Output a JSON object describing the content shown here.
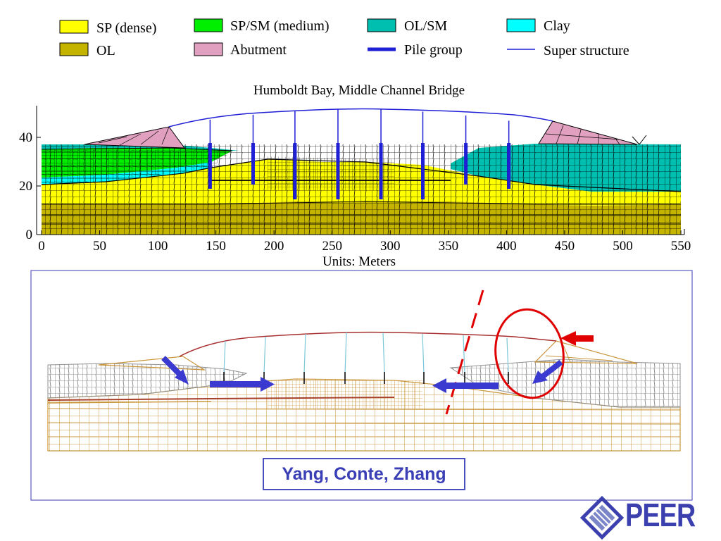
{
  "legend": {
    "items": [
      {
        "label": "SP (dense)",
        "color": "#ffff00",
        "kind": "box"
      },
      {
        "label": "SP/SM (medium)",
        "color": "#00ee00",
        "kind": "box"
      },
      {
        "label": "OL/SM",
        "color": "#00bfb0",
        "kind": "box"
      },
      {
        "label": "Clay",
        "color": "#00ffff",
        "kind": "box"
      },
      {
        "label": "OL",
        "color": "#c4b400",
        "kind": "box"
      },
      {
        "label": "Abutment",
        "color": "#e2a0c0",
        "kind": "box"
      },
      {
        "label": "Pile group",
        "color": "#1f1fd6",
        "kind": "thick-line"
      },
      {
        "label": "Super structure",
        "color": "#1f1fd6",
        "kind": "thin-line"
      }
    ]
  },
  "top_figure": {
    "title": "Humboldt Bay, Middle Channel Bridge",
    "x_axis_label": "Units: Meters",
    "x_ticks": [
      "0",
      "50",
      "100",
      "150",
      "200",
      "250",
      "300",
      "350",
      "400",
      "450",
      "500",
      "550"
    ],
    "y_ticks": [
      "0",
      "20",
      "40"
    ],
    "pile_x_m": [
      145,
      182,
      218,
      255,
      292,
      328,
      365,
      402
    ]
  },
  "bottom_figure": {
    "credit": "Yang, Conte, Zhang"
  },
  "logo": {
    "text": "PEER"
  },
  "colors": {
    "mesh_line": "#000000",
    "deformed_sand": "#c8963c",
    "deformed_gray": "#909090",
    "arrow_blue": "#3a3ad0",
    "arrow_red": "#e00000",
    "frame_blue": "#3a3ab0"
  }
}
